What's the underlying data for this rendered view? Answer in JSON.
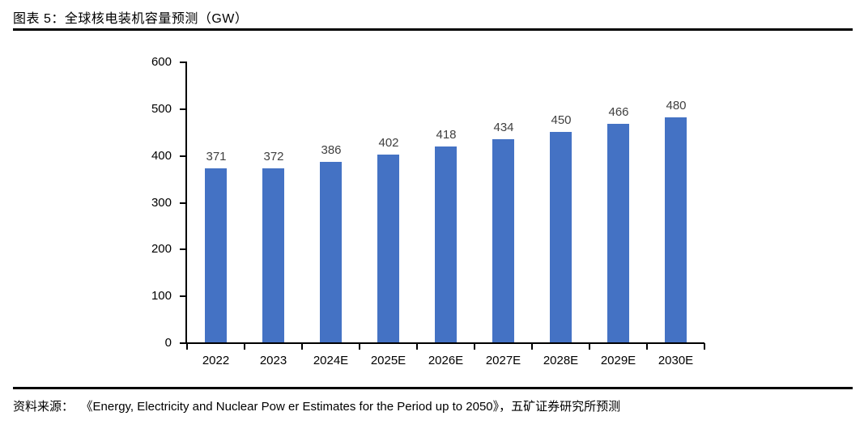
{
  "header": {
    "title": "图表 5：全球核电装机容量预测（GW）"
  },
  "chart_data": {
    "type": "bar",
    "title": "全球核电装机容量预测（GW）",
    "categories": [
      "2022",
      "2023",
      "2024E",
      "2025E",
      "2026E",
      "2027E",
      "2028E",
      "2029E",
      "2030E"
    ],
    "values": [
      371,
      372,
      386,
      402,
      418,
      434,
      450,
      466,
      480
    ],
    "xlabel": "",
    "ylabel": "",
    "ylim": [
      0,
      600
    ],
    "y_ticks": [
      0,
      100,
      200,
      300,
      400,
      500,
      600
    ],
    "grid": false,
    "legend": false,
    "data_labels": true,
    "bar_color": "#4472C4",
    "data_label_color": "#404040",
    "axis_color": "#000000"
  },
  "footer": {
    "source_label": "资料来源：",
    "source_text": "《Energy, Electricity and Nuclear Pow er Estimates for the Period up to 2050》，五矿证券研究所预测"
  }
}
